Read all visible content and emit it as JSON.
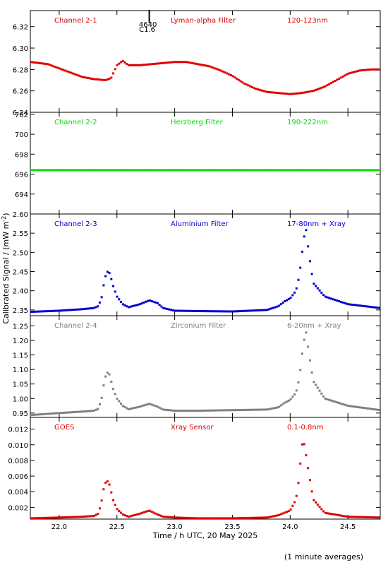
{
  "xlabel": "Time / h UTC, 20 May 2025",
  "ylabel": "Calibrated Signal / (mW m",
  "ylabel_sup": "-2",
  "ylabel_end": ")",
  "footnote": "(1 minute averages)",
  "marker": {
    "x": 22.78,
    "line1": "4640",
    "line2": "C1.6"
  },
  "xlim": [
    21.75,
    24.78
  ],
  "xticks": [
    22.0,
    22.5,
    23.0,
    23.5,
    24.0,
    24.5
  ],
  "xticklabels": [
    "22.0",
    "22.5",
    "23.0",
    "23.5",
    "24.0",
    "24.5"
  ],
  "chart_data": [
    {
      "type": "scatter",
      "channel": "Channel 2-1",
      "filter": "Lyman-alpha Filter",
      "band": "120-123nm",
      "color": "#e00000",
      "ylim": [
        6.24,
        6.335
      ],
      "yticks": [
        6.24,
        6.26,
        6.28,
        6.3,
        6.32
      ],
      "yticklabels": [
        "6.24",
        "6.26",
        "6.28",
        "6.30",
        "6.32"
      ],
      "x": [
        21.75,
        21.9,
        22.0,
        22.1,
        22.2,
        22.3,
        22.4,
        22.45,
        22.5,
        22.55,
        22.6,
        22.7,
        22.8,
        22.9,
        23.0,
        23.1,
        23.2,
        23.3,
        23.4,
        23.5,
        23.6,
        23.7,
        23.8,
        23.9,
        24.0,
        24.1,
        24.2,
        24.3,
        24.4,
        24.5,
        24.6,
        24.7,
        24.78
      ],
      "y": [
        6.287,
        6.285,
        6.281,
        6.277,
        6.273,
        6.271,
        6.27,
        6.272,
        6.284,
        6.288,
        6.284,
        6.284,
        6.285,
        6.286,
        6.287,
        6.287,
        6.285,
        6.283,
        6.279,
        6.274,
        6.267,
        6.262,
        6.259,
        6.258,
        6.257,
        6.258,
        6.26,
        6.264,
        6.27,
        6.276,
        6.279,
        6.28,
        6.28
      ]
    },
    {
      "type": "scatter",
      "channel": "Channel 2-2",
      "filter": "Herzberg Filter",
      "band": "190-222nm",
      "color": "#00e000",
      "ylim": [
        692.0,
        702.2
      ],
      "yticks": [
        694,
        696,
        698,
        700,
        702
      ],
      "yticklabels": [
        "694",
        "696",
        "698",
        "700",
        "702"
      ],
      "x": [
        21.75,
        22.0,
        22.5,
        23.0,
        23.5,
        24.0,
        24.5,
        24.78
      ],
      "y": [
        696.4,
        696.4,
        696.4,
        696.4,
        696.4,
        696.4,
        696.4,
        696.4
      ]
    },
    {
      "type": "scatter",
      "channel": "Channel 2-3",
      "filter": "Aluminium Filter",
      "band": "17-80nm + Xray",
      "color": "#0000d0",
      "ylim": [
        2.335,
        2.6
      ],
      "yticks": [
        2.35,
        2.4,
        2.45,
        2.5,
        2.55,
        2.6
      ],
      "yticklabels": [
        "2.35",
        "2.40",
        "2.45",
        "2.50",
        "2.55",
        "2.60"
      ],
      "x": [
        21.75,
        22.0,
        22.2,
        22.3,
        22.34,
        22.37,
        22.39,
        22.41,
        22.43,
        22.45,
        22.47,
        22.5,
        22.55,
        22.6,
        22.7,
        22.78,
        22.85,
        22.9,
        23.0,
        23.2,
        23.5,
        23.8,
        23.9,
        23.95,
        24.0,
        24.05,
        24.08,
        24.1,
        24.12,
        24.14,
        24.16,
        24.2,
        24.3,
        24.5,
        24.78
      ],
      "y": [
        2.345,
        2.348,
        2.352,
        2.355,
        2.36,
        2.385,
        2.425,
        2.448,
        2.451,
        2.432,
        2.41,
        2.385,
        2.365,
        2.357,
        2.365,
        2.375,
        2.368,
        2.355,
        2.348,
        2.347,
        2.346,
        2.35,
        2.36,
        2.372,
        2.38,
        2.4,
        2.44,
        2.49,
        2.54,
        2.56,
        2.5,
        2.42,
        2.385,
        2.365,
        2.355
      ]
    },
    {
      "type": "scatter",
      "channel": "Channel 2-4",
      "filter": "Zirconium Filter",
      "band": "6-20nm + Xray",
      "color": "#808080",
      "ylim": [
        0.935,
        1.285
      ],
      "yticks": [
        0.95,
        1.0,
        1.05,
        1.1,
        1.15,
        1.2,
        1.25
      ],
      "yticklabels": [
        "0.95",
        "1.00",
        "1.05",
        "1.10",
        "1.15",
        "1.20",
        "1.25"
      ],
      "x": [
        21.75,
        22.0,
        22.2,
        22.3,
        22.34,
        22.37,
        22.39,
        22.41,
        22.43,
        22.45,
        22.47,
        22.5,
        22.55,
        22.6,
        22.7,
        22.78,
        22.85,
        22.9,
        23.0,
        23.2,
        23.5,
        23.8,
        23.9,
        23.95,
        24.0,
        24.05,
        24.08,
        24.1,
        24.12,
        24.14,
        24.16,
        24.2,
        24.3,
        24.5,
        24.78
      ],
      "y": [
        0.943,
        0.95,
        0.955,
        0.958,
        0.965,
        1.005,
        1.06,
        1.088,
        1.09,
        1.06,
        1.03,
        1.0,
        0.975,
        0.963,
        0.972,
        0.982,
        0.972,
        0.962,
        0.958,
        0.958,
        0.96,
        0.962,
        0.97,
        0.985,
        0.995,
        1.02,
        1.07,
        1.14,
        1.2,
        1.23,
        1.16,
        1.06,
        1.0,
        0.975,
        0.96
      ]
    },
    {
      "type": "scatter",
      "channel": "GOES",
      "filter": "Xray Sensor",
      "band": "0.1-0.8nm",
      "color": "#e00000",
      "ylim": [
        0.0005,
        0.0135
      ],
      "yticks": [
        0.002,
        0.004,
        0.006,
        0.008,
        0.01,
        0.012
      ],
      "yticklabels": [
        "0.002",
        "0.004",
        "0.006",
        "0.008",
        "0.010",
        "0.012"
      ],
      "x": [
        21.75,
        22.0,
        22.2,
        22.3,
        22.34,
        22.37,
        22.39,
        22.41,
        22.43,
        22.45,
        22.47,
        22.5,
        22.55,
        22.6,
        22.7,
        22.78,
        22.85,
        22.9,
        23.0,
        23.2,
        23.5,
        23.8,
        23.9,
        23.95,
        24.0,
        24.05,
        24.08,
        24.1,
        24.12,
        24.14,
        24.16,
        24.2,
        24.3,
        24.5,
        24.78
      ],
      "y": [
        0.0006,
        0.0007,
        0.0008,
        0.0009,
        0.0012,
        0.003,
        0.0048,
        0.0054,
        0.0052,
        0.004,
        0.0028,
        0.0018,
        0.0011,
        0.0008,
        0.0012,
        0.0016,
        0.0011,
        0.0008,
        0.0007,
        0.0006,
        0.0006,
        0.0007,
        0.001,
        0.0013,
        0.0016,
        0.003,
        0.006,
        0.01,
        0.0102,
        0.0085,
        0.0065,
        0.003,
        0.0013,
        0.0008,
        0.0007
      ]
    }
  ]
}
